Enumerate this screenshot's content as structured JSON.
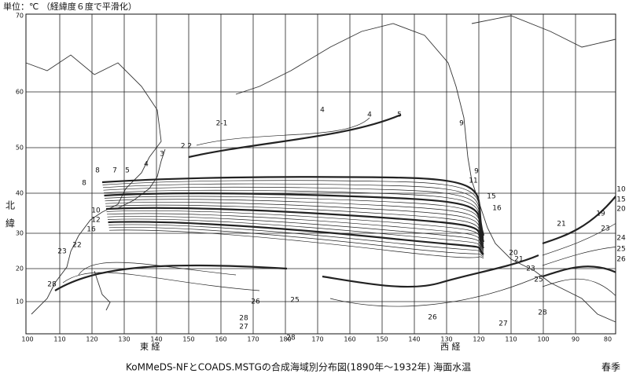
{
  "header": {
    "unit_note": "単位：℃ （経緯度６度で平滑化）"
  },
  "axes": {
    "latitude_labels": [
      70,
      60,
      50,
      40,
      30,
      20,
      10
    ],
    "longitude_labels": [
      100,
      110,
      120,
      130,
      140,
      150,
      160,
      170,
      180,
      170,
      160,
      150,
      140,
      130,
      120,
      110,
      100,
      90,
      80
    ],
    "north_lat_label": [
      "北",
      "緯"
    ],
    "east_lon_label": "東 経",
    "west_lon_label": "西 経"
  },
  "contour_labels": [
    "5",
    "4",
    "4",
    "9",
    "9",
    "11",
    "15",
    "16",
    "20",
    "21",
    "23",
    "25",
    "26",
    "25",
    "28",
    "27",
    "28",
    "26",
    "27",
    "28",
    "10",
    "15",
    "19",
    "20",
    "21",
    "23",
    "24",
    "25",
    "26",
    "8",
    "8",
    "7",
    "5",
    "4",
    "3",
    "2-1",
    "2 2",
    "10",
    "12",
    "16",
    "22",
    "23",
    "28"
  ],
  "caption": {
    "title": "KoMMeDS-NFとCOADS.MSTGの合成海域別分布図(1890年～1932年)  海面水温",
    "season": "春季"
  }
}
